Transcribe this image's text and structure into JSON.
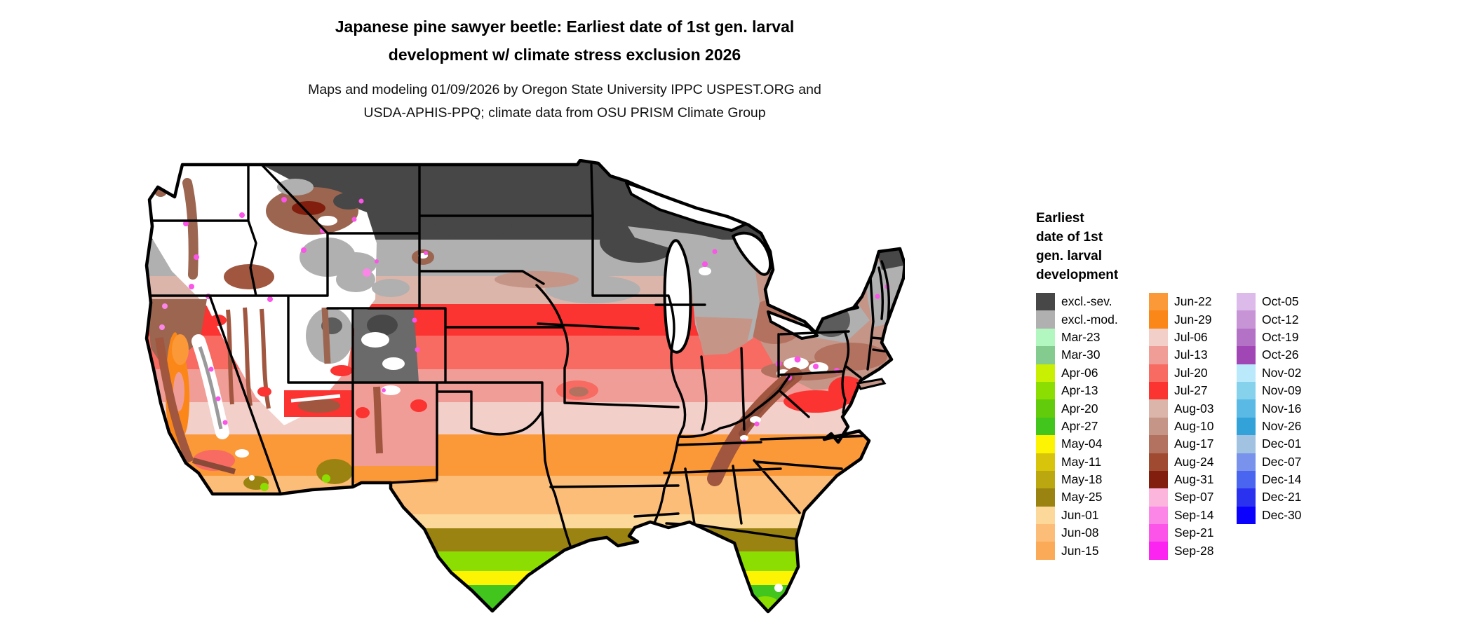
{
  "header": {
    "title_line1": "Japanese pine sawyer beetle: Earliest date of 1st gen. larval",
    "title_line2": "development w/ climate stress exclusion 2026",
    "subtitle_line1": "Maps and modeling 01/09/2026 by Oregon State University IPPC USPEST.ORG and",
    "subtitle_line2": "USDA-APHIS-PPQ; climate data from OSU PRISM Climate Group"
  },
  "legend": {
    "title_lines": [
      "Earliest",
      "date of 1st",
      "gen. larval",
      "development"
    ],
    "columns": [
      {
        "entries": [
          {
            "label": "excl.-sev.",
            "color": "#474747"
          },
          {
            "label": "excl.-mod.",
            "color": "#b0b0b0"
          },
          {
            "label": "Mar-23",
            "color": "#b2f7c0"
          },
          {
            "label": "Mar-30",
            "color": "#84cb90"
          },
          {
            "label": "Apr-06",
            "color": "#c9f002"
          },
          {
            "label": "Apr-13",
            "color": "#8bdd02"
          },
          {
            "label": "Apr-20",
            "color": "#62cc0c"
          },
          {
            "label": "Apr-27",
            "color": "#42c51c"
          },
          {
            "label": "May-04",
            "color": "#fdf403"
          },
          {
            "label": "May-11",
            "color": "#d8c40a"
          },
          {
            "label": "May-18",
            "color": "#bba811"
          },
          {
            "label": "May-25",
            "color": "#9b8311"
          },
          {
            "label": "Jun-01",
            "color": "#fcd89a"
          },
          {
            "label": "Jun-08",
            "color": "#fcbd78"
          },
          {
            "label": "Jun-15",
            "color": "#fbab58"
          }
        ]
      },
      {
        "entries": [
          {
            "label": "Jun-22",
            "color": "#fb9838"
          },
          {
            "label": "Jun-29",
            "color": "#fb8718"
          },
          {
            "label": "Jul-06",
            "color": "#f2cfc9"
          },
          {
            "label": "Jul-13",
            "color": "#f19d97"
          },
          {
            "label": "Jul-20",
            "color": "#f76b62"
          },
          {
            "label": "Jul-27",
            "color": "#fb3331"
          },
          {
            "label": "Aug-03",
            "color": "#dcb5aa"
          },
          {
            "label": "Aug-10",
            "color": "#c59587"
          },
          {
            "label": "Aug-17",
            "color": "#b37260"
          },
          {
            "label": "Aug-24",
            "color": "#a04a32"
          },
          {
            "label": "Aug-31",
            "color": "#811e0e"
          },
          {
            "label": "Sep-07",
            "color": "#fcb5dd"
          },
          {
            "label": "Sep-14",
            "color": "#fc86e8"
          },
          {
            "label": "Sep-21",
            "color": "#fc53e9"
          },
          {
            "label": "Sep-28",
            "color": "#fc24f1"
          }
        ]
      },
      {
        "entries": [
          {
            "label": "Oct-05",
            "color": "#dcbae9"
          },
          {
            "label": "Oct-12",
            "color": "#c795d5"
          },
          {
            "label": "Oct-19",
            "color": "#b372c5"
          },
          {
            "label": "Oct-26",
            "color": "#a046b5"
          },
          {
            "label": "Nov-02",
            "color": "#bae9fc"
          },
          {
            "label": "Nov-09",
            "color": "#86d2ed"
          },
          {
            "label": "Nov-16",
            "color": "#5bbae5"
          },
          {
            "label": "Nov-26",
            "color": "#33a2d9"
          },
          {
            "label": "Dec-01",
            "color": "#a2c2e1"
          },
          {
            "label": "Dec-07",
            "color": "#7992ec"
          },
          {
            "label": "Dec-14",
            "color": "#4a66f0"
          },
          {
            "label": "Dec-21",
            "color": "#2a32f0"
          },
          {
            "label": "Dec-30",
            "color": "#0a02fc"
          }
        ]
      }
    ]
  },
  "map": {
    "type": "raster-choropleth",
    "area": "Contiguous United States",
    "no_data_color": "#ffffff",
    "regions_summary": [
      {
        "region": "Northern tier (MT, ND, MN, WI, northern MI, northern ME)",
        "category": "excl.-sev."
      },
      {
        "region": "Band south of northern tier (SD, s. MN/WI, upstate NY, New England)",
        "category": "excl.-mod."
      },
      {
        "region": "Great Lakes south shore, NY, PA, New England coast",
        "category": "Aug-03 to Aug-31"
      },
      {
        "region": "Corn belt (IA, IL, IN, OH, NE)",
        "category": "Jul-20 to Jul-27"
      },
      {
        "region": "Mid-south (MO, KY, TN, VA, KS)",
        "category": "Jul-06 to Jul-13"
      },
      {
        "region": "Southern plains and southeast (OK, AR, NC, SC, GA, n. TX)",
        "category": "Jun-08 to Jun-29"
      },
      {
        "region": "Gulf coast and central TX",
        "category": "May-18 to Jun-01"
      },
      {
        "region": "South TX and central FL",
        "category": "Apr-06 to May-11"
      },
      {
        "region": "Southern tips of TX and FL",
        "category": "Apr-13 to Apr-27"
      },
      {
        "region": "Mountain West high elevations",
        "category": "Sep-07 to Sep-28 and no data"
      }
    ]
  }
}
